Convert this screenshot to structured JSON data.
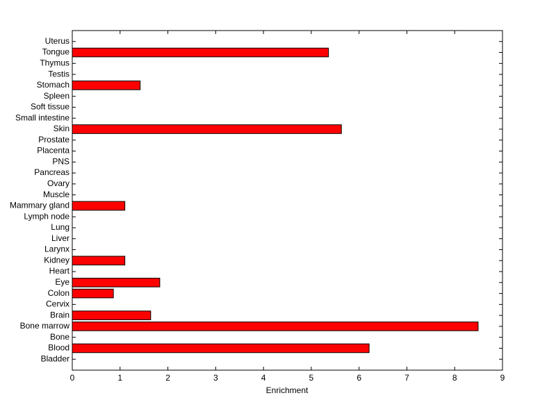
{
  "chart_data": {
    "type": "hbar",
    "xlabel": "Enrichment",
    "categories": [
      "Bladder",
      "Blood",
      "Bone",
      "Bone marrow",
      "Brain",
      "Cervix",
      "Colon",
      "Eye",
      "Heart",
      "Kidney",
      "Larynx",
      "Liver",
      "Lung",
      "Lymph node",
      "Mammary gland",
      "Muscle",
      "Ovary",
      "Pancreas",
      "PNS",
      "Placenta",
      "Prostate",
      "Skin",
      "Small intestine",
      "Soft tissue",
      "Spleen",
      "Stomach",
      "Testis",
      "Thymus",
      "Tongue",
      "Uterus"
    ],
    "values": [
      0,
      6.21,
      0,
      8.49,
      1.64,
      0,
      0.86,
      1.83,
      0,
      1.1,
      0,
      0,
      0,
      0,
      1.1,
      0,
      0,
      0,
      0,
      0,
      0,
      5.63,
      0,
      0,
      0,
      1.42,
      0,
      0,
      5.36,
      0
    ],
    "color": "#ff0000",
    "xlim": [
      0,
      9
    ],
    "xticks": [
      0,
      1,
      2,
      3,
      4,
      5,
      6,
      7,
      8,
      9
    ]
  }
}
